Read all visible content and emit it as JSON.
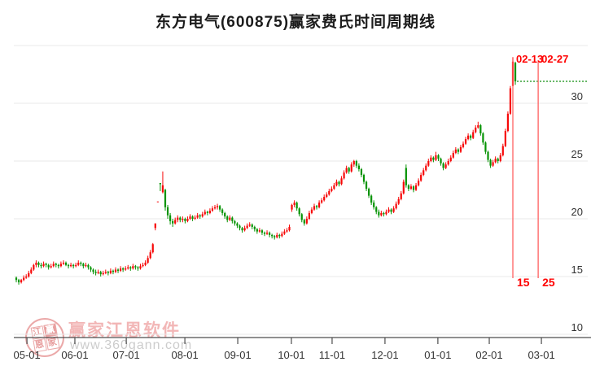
{
  "title": "东方电气(600875)赢家费氏时间周期线",
  "watermark": {
    "brand": "赢家江恩软件",
    "url": "www.360gann.com",
    "stamp_chars": [
      "江",
      "赢",
      "恩",
      "家"
    ]
  },
  "colors": {
    "up": "#f70808",
    "down": "#079305",
    "grid": "#e8e8e8",
    "axis_line": "#4d4d4d",
    "axis_text": "#333333",
    "fib_line": "#ff6060",
    "fib_text": "#ff0000",
    "last_price_line": "#0b8a0b",
    "title_text": "#1c1c1c"
  },
  "chart_data": {
    "type": "candlestick",
    "title": "东方电气(600875)赢家费氏时间周期线",
    "xlabel": "",
    "ylabel": "",
    "ylim": [
      9.7,
      35.6
    ],
    "grid": "horizontal",
    "y_axis": {
      "ticks": [
        10,
        15,
        20,
        25,
        30
      ],
      "unlabeled_grid": [
        35
      ],
      "side": "right"
    },
    "x_axis": {
      "ticks": [
        {
          "label": "05-01",
          "day": 4.3
        },
        {
          "label": "06-01",
          "day": 23.6
        },
        {
          "label": "07-01",
          "day": 44.3
        },
        {
          "label": "08-01",
          "day": 67.9
        },
        {
          "label": "09-01",
          "day": 89.2
        },
        {
          "label": "10-01",
          "day": 110.8
        },
        {
          "label": "11-01",
          "day": 127.2
        },
        {
          "label": "12-01",
          "day": 148.5
        },
        {
          "label": "01-01",
          "day": 169.8
        },
        {
          "label": "02-01",
          "day": 190.5
        },
        {
          "label": "03-01",
          "day": 211.5
        }
      ]
    },
    "fib_time_lines": [
      {
        "date_label": "02-13",
        "count_label": "15",
        "day": 200.0
      },
      {
        "date_label": "02-27",
        "count_label": "25",
        "day": 210.2
      }
    ],
    "last_price": 31.9,
    "candles": [
      [
        14.9,
        15.0,
        14.5,
        14.7
      ],
      [
        14.7,
        14.8,
        14.3,
        14.5
      ],
      [
        14.5,
        14.8,
        14.4,
        14.7
      ],
      [
        14.7,
        15.1,
        14.6,
        14.9
      ],
      [
        14.9,
        15.2,
        14.8,
        15.0
      ],
      [
        15.0,
        15.5,
        14.9,
        15.3
      ],
      [
        15.3,
        15.8,
        15.2,
        15.6
      ],
      [
        15.6,
        16.1,
        15.5,
        16.0
      ],
      [
        16.0,
        16.4,
        15.8,
        16.2
      ],
      [
        16.2,
        16.3,
        15.8,
        16.0
      ],
      [
        16.0,
        16.2,
        15.7,
        15.9
      ],
      [
        15.9,
        16.3,
        15.8,
        16.1
      ],
      [
        16.1,
        16.2,
        15.8,
        16.0
      ],
      [
        16.0,
        16.1,
        15.6,
        15.8
      ],
      [
        15.8,
        16.1,
        15.7,
        15.9
      ],
      [
        15.9,
        16.3,
        15.8,
        16.1
      ],
      [
        16.1,
        16.2,
        15.8,
        16.0
      ],
      [
        16.0,
        16.1,
        15.7,
        15.9
      ],
      [
        15.9,
        16.3,
        15.8,
        16.1
      ],
      [
        16.1,
        16.4,
        16.0,
        16.2
      ],
      [
        16.2,
        16.3,
        15.9,
        16.0
      ],
      [
        16.0,
        16.1,
        15.7,
        15.9
      ],
      [
        15.9,
        16.2,
        15.8,
        16.0
      ],
      [
        16.0,
        16.1,
        15.7,
        15.9
      ],
      [
        15.9,
        16.2,
        15.8,
        16.0
      ],
      [
        16.0,
        16.4,
        15.9,
        16.2
      ],
      [
        16.2,
        16.3,
        15.9,
        16.1
      ],
      [
        16.1,
        16.2,
        15.7,
        15.9
      ],
      [
        15.9,
        16.2,
        15.8,
        16.0
      ],
      [
        16.0,
        16.1,
        15.6,
        15.8
      ],
      [
        15.8,
        15.9,
        15.4,
        15.6
      ],
      [
        15.6,
        15.7,
        15.2,
        15.4
      ],
      [
        15.4,
        15.6,
        15.1,
        15.3
      ],
      [
        15.3,
        15.6,
        15.2,
        15.4
      ],
      [
        15.4,
        15.5,
        15.0,
        15.2
      ],
      [
        15.2,
        15.5,
        15.1,
        15.3
      ],
      [
        15.3,
        15.6,
        15.2,
        15.4
      ],
      [
        15.4,
        15.5,
        15.1,
        15.3
      ],
      [
        15.3,
        15.7,
        15.2,
        15.5
      ],
      [
        15.5,
        15.6,
        15.2,
        15.4
      ],
      [
        15.4,
        15.8,
        15.3,
        15.6
      ],
      [
        15.6,
        15.7,
        15.3,
        15.5
      ],
      [
        15.5,
        15.9,
        15.4,
        15.7
      ],
      [
        15.7,
        15.8,
        15.4,
        15.6
      ],
      [
        15.6,
        15.9,
        15.5,
        15.7
      ],
      [
        15.7,
        16.0,
        15.6,
        15.8
      ],
      [
        15.8,
        15.9,
        15.5,
        15.7
      ],
      [
        15.7,
        16.1,
        15.6,
        15.9
      ],
      [
        15.9,
        16.0,
        15.6,
        15.8
      ],
      [
        15.8,
        15.9,
        15.5,
        15.7
      ],
      [
        15.7,
        16.1,
        15.6,
        15.9
      ],
      [
        15.9,
        16.2,
        15.8,
        16.0
      ],
      [
        16.0,
        16.4,
        15.9,
        16.2
      ],
      [
        16.2,
        16.8,
        16.1,
        16.6
      ],
      [
        16.6,
        17.3,
        16.5,
        17.1
      ],
      [
        17.1,
        17.9,
        17.0,
        17.8
      ],
      [
        19.2,
        19.6,
        19.0,
        19.6
      ],
      [
        21.5,
        21.5,
        21.5,
        21.5
      ],
      [
        23.1,
        23.1,
        22.4,
        23.0
      ],
      [
        22.3,
        24.1,
        22.2,
        22.9
      ],
      [
        22.5,
        22.6,
        20.7,
        21.0
      ],
      [
        21.0,
        21.2,
        20.0,
        20.3
      ],
      [
        20.3,
        20.5,
        19.5,
        19.8
      ],
      [
        19.8,
        20.0,
        19.3,
        19.6
      ],
      [
        19.6,
        20.1,
        19.5,
        19.9
      ],
      [
        19.9,
        20.3,
        19.7,
        20.1
      ],
      [
        20.1,
        20.2,
        19.7,
        19.9
      ],
      [
        19.9,
        20.2,
        19.7,
        20.0
      ],
      [
        20.0,
        20.1,
        19.6,
        19.8
      ],
      [
        19.8,
        20.2,
        19.7,
        20.0
      ],
      [
        20.0,
        20.4,
        19.9,
        20.2
      ],
      [
        20.2,
        20.3,
        19.8,
        20.0
      ],
      [
        20.0,
        20.3,
        19.9,
        20.1
      ],
      [
        20.1,
        20.5,
        20.0,
        20.3
      ],
      [
        20.3,
        20.4,
        20.0,
        20.2
      ],
      [
        20.2,
        20.6,
        20.1,
        20.4
      ],
      [
        20.4,
        20.8,
        20.3,
        20.6
      ],
      [
        20.6,
        20.7,
        20.3,
        20.5
      ],
      [
        20.5,
        20.9,
        20.4,
        20.7
      ],
      [
        20.7,
        21.1,
        20.6,
        20.9
      ],
      [
        20.9,
        21.2,
        20.8,
        21.0
      ],
      [
        21.0,
        21.3,
        20.8,
        21.1
      ],
      [
        21.1,
        21.2,
        20.6,
        20.8
      ],
      [
        20.8,
        20.9,
        20.3,
        20.5
      ],
      [
        20.5,
        20.6,
        20.0,
        20.2
      ],
      [
        20.2,
        20.3,
        19.7,
        19.9
      ],
      [
        19.9,
        20.3,
        19.8,
        20.1
      ],
      [
        20.1,
        20.2,
        19.6,
        19.8
      ],
      [
        19.8,
        19.9,
        19.4,
        19.6
      ],
      [
        19.6,
        19.7,
        19.2,
        19.4
      ],
      [
        19.4,
        19.5,
        19.0,
        19.2
      ],
      [
        19.2,
        19.3,
        18.8,
        19.0
      ],
      [
        19.0,
        19.4,
        18.9,
        19.2
      ],
      [
        19.2,
        19.6,
        19.1,
        19.4
      ],
      [
        19.4,
        19.7,
        19.3,
        19.5
      ],
      [
        19.5,
        19.6,
        19.1,
        19.3
      ],
      [
        19.3,
        19.4,
        18.9,
        19.1
      ],
      [
        19.1,
        19.2,
        18.7,
        18.9
      ],
      [
        18.9,
        19.2,
        18.8,
        19.0
      ],
      [
        19.0,
        19.1,
        18.6,
        18.8
      ],
      [
        18.8,
        18.9,
        18.5,
        18.7
      ],
      [
        18.7,
        19.0,
        18.6,
        18.8
      ],
      [
        18.8,
        18.9,
        18.4,
        18.6
      ],
      [
        18.6,
        18.7,
        18.3,
        18.5
      ],
      [
        18.5,
        18.6,
        18.2,
        18.4
      ],
      [
        18.4,
        18.8,
        18.3,
        18.6
      ],
      [
        18.6,
        18.7,
        18.3,
        18.5
      ],
      [
        18.5,
        18.9,
        18.4,
        18.7
      ],
      [
        18.7,
        19.1,
        18.6,
        18.9
      ],
      [
        18.9,
        19.2,
        18.8,
        19.0
      ],
      [
        19.0,
        19.5,
        18.9,
        19.3
      ],
      [
        20.8,
        21.3,
        20.6,
        21.2
      ],
      [
        21.2,
        21.6,
        21.0,
        21.4
      ],
      [
        21.4,
        21.5,
        20.7,
        20.9
      ],
      [
        20.9,
        21.0,
        20.2,
        20.4
      ],
      [
        20.4,
        20.5,
        19.7,
        19.9
      ],
      [
        19.9,
        20.0,
        19.4,
        19.6
      ],
      [
        19.6,
        20.2,
        19.5,
        20.0
      ],
      [
        20.0,
        20.7,
        19.9,
        20.5
      ],
      [
        20.5,
        21.0,
        20.4,
        20.8
      ],
      [
        20.8,
        21.3,
        20.7,
        21.1
      ],
      [
        21.1,
        21.2,
        20.8,
        21.0
      ],
      [
        21.0,
        21.6,
        20.9,
        21.4
      ],
      [
        21.4,
        21.8,
        21.3,
        21.6
      ],
      [
        21.6,
        22.1,
        21.5,
        21.9
      ],
      [
        21.9,
        22.3,
        21.8,
        22.1
      ],
      [
        22.1,
        22.6,
        22.0,
        22.4
      ],
      [
        22.4,
        22.8,
        22.3,
        22.6
      ],
      [
        22.6,
        23.1,
        22.5,
        22.9
      ],
      [
        22.9,
        23.4,
        22.8,
        23.2
      ],
      [
        23.2,
        23.3,
        22.8,
        23.0
      ],
      [
        23.0,
        23.7,
        22.9,
        23.5
      ],
      [
        23.5,
        24.2,
        23.4,
        24.0
      ],
      [
        24.0,
        24.6,
        23.9,
        24.4
      ],
      [
        24.4,
        24.5,
        23.9,
        24.1
      ],
      [
        24.1,
        24.9,
        24.0,
        24.7
      ],
      [
        24.7,
        25.1,
        24.5,
        25.0
      ],
      [
        25.0,
        25.1,
        24.4,
        24.6
      ],
      [
        24.6,
        24.8,
        24.1,
        24.3
      ],
      [
        24.3,
        24.4,
        23.6,
        23.8
      ],
      [
        23.8,
        23.9,
        23.0,
        23.2
      ],
      [
        23.2,
        23.3,
        22.4,
        22.6
      ],
      [
        22.6,
        22.7,
        21.8,
        22.0
      ],
      [
        22.0,
        22.1,
        21.2,
        21.4
      ],
      [
        21.4,
        21.6,
        20.8,
        21.0
      ],
      [
        21.0,
        21.1,
        20.4,
        20.6
      ],
      [
        20.6,
        20.8,
        20.1,
        20.3
      ],
      [
        20.3,
        20.7,
        20.2,
        20.5
      ],
      [
        20.5,
        20.6,
        20.2,
        20.4
      ],
      [
        20.4,
        20.8,
        20.3,
        20.6
      ],
      [
        20.6,
        21.0,
        20.5,
        20.8
      ],
      [
        20.8,
        20.9,
        20.4,
        20.6
      ],
      [
        20.6,
        21.1,
        20.5,
        20.9
      ],
      [
        20.9,
        21.5,
        20.8,
        21.3
      ],
      [
        21.3,
        21.9,
        21.2,
        21.7
      ],
      [
        21.7,
        22.4,
        21.6,
        22.2
      ],
      [
        22.2,
        23.4,
        22.1,
        23.2
      ],
      [
        24.4,
        24.7,
        22.7,
        22.9
      ],
      [
        22.9,
        23.0,
        22.4,
        22.6
      ],
      [
        22.6,
        23.0,
        22.5,
        22.8
      ],
      [
        22.8,
        22.9,
        22.3,
        22.5
      ],
      [
        22.5,
        23.1,
        22.4,
        22.9
      ],
      [
        22.9,
        23.5,
        22.8,
        23.3
      ],
      [
        23.3,
        24.0,
        23.2,
        23.8
      ],
      [
        23.8,
        24.4,
        23.7,
        24.2
      ],
      [
        24.2,
        24.8,
        24.1,
        24.6
      ],
      [
        24.6,
        25.2,
        24.5,
        25.0
      ],
      [
        25.0,
        25.5,
        24.9,
        25.3
      ],
      [
        25.3,
        25.4,
        24.9,
        25.1
      ],
      [
        25.1,
        25.8,
        25.0,
        25.5
      ],
      [
        25.5,
        25.6,
        25.0,
        25.2
      ],
      [
        25.2,
        25.3,
        24.6,
        24.8
      ],
      [
        24.8,
        24.9,
        24.2,
        24.4
      ],
      [
        24.4,
        24.9,
        24.3,
        24.7
      ],
      [
        24.7,
        25.2,
        24.6,
        25.0
      ],
      [
        25.0,
        25.5,
        24.9,
        25.3
      ],
      [
        25.3,
        25.9,
        25.2,
        25.7
      ],
      [
        25.7,
        26.2,
        25.6,
        26.0
      ],
      [
        26.0,
        26.1,
        25.6,
        25.8
      ],
      [
        25.8,
        26.4,
        25.7,
        26.2
      ],
      [
        26.2,
        26.7,
        26.1,
        26.5
      ],
      [
        26.5,
        27.1,
        26.4,
        26.9
      ],
      [
        26.9,
        27.4,
        26.8,
        27.2
      ],
      [
        27.2,
        27.3,
        26.8,
        27.0
      ],
      [
        27.0,
        27.7,
        26.9,
        27.5
      ],
      [
        27.5,
        28.1,
        27.4,
        27.9
      ],
      [
        27.9,
        28.4,
        27.8,
        28.1
      ],
      [
        28.1,
        28.2,
        27.2,
        27.4
      ],
      [
        27.4,
        27.5,
        26.4,
        26.6
      ],
      [
        26.6,
        26.7,
        25.6,
        25.8
      ],
      [
        25.8,
        25.9,
        24.9,
        25.1
      ],
      [
        25.1,
        25.2,
        24.4,
        24.6
      ],
      [
        24.6,
        25.1,
        24.5,
        24.9
      ],
      [
        24.9,
        25.4,
        24.8,
        25.2
      ],
      [
        25.2,
        25.3,
        24.8,
        25.0
      ],
      [
        25.0,
        25.7,
        24.9,
        25.5
      ],
      [
        25.5,
        26.5,
        25.4,
        26.3
      ],
      [
        26.3,
        27.8,
        26.2,
        27.6
      ],
      [
        27.6,
        29.3,
        27.5,
        29.1
      ],
      [
        29.1,
        31.5,
        29.0,
        31.3
      ],
      [
        31.5,
        34.0,
        31.2,
        33.6
      ],
      [
        33.5,
        33.6,
        31.6,
        31.9
      ]
    ]
  }
}
